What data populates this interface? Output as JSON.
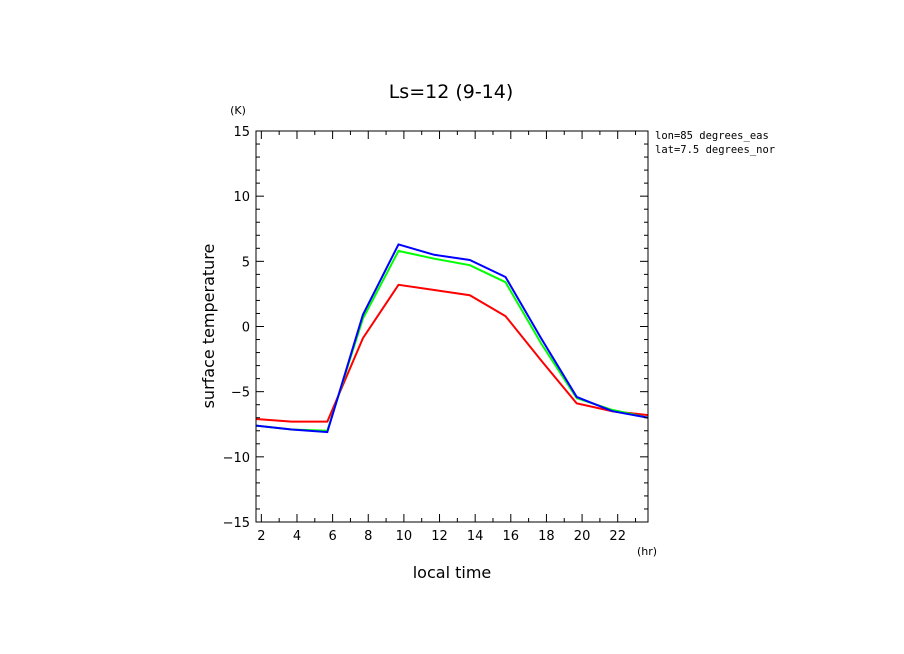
{
  "chart_data": {
    "type": "line",
    "title": "Ls=12 (9-14)",
    "xlabel": "local time",
    "ylabel": "surface temperature",
    "xunit": "(hr)",
    "yunit": "(K)",
    "xlim": [
      1.7,
      23.7
    ],
    "ylim": [
      -15,
      15
    ],
    "xticks": [
      2,
      4,
      6,
      8,
      10,
      12,
      14,
      16,
      18,
      20,
      22
    ],
    "yticks": [
      -15,
      -10,
      -5,
      0,
      5,
      10,
      15
    ],
    "xtick_labels": [
      "2",
      "4",
      "6",
      "8",
      "10",
      "12",
      "14",
      "16",
      "18",
      "20",
      "22"
    ],
    "ytick_labels": [
      "−15",
      "−10",
      "−5",
      "0",
      "5",
      "10",
      "15"
    ],
    "annotations": [
      "lon=85 degrees_eas",
      "lat=7.5 degrees_nor"
    ],
    "x": [
      1.7,
      3.7,
      5.7,
      7.7,
      9.7,
      11.7,
      13.7,
      15.7,
      17.7,
      19.7,
      21.7,
      23.7
    ],
    "series": [
      {
        "color": "#ff0000",
        "values": [
          -7.1,
          -7.3,
          -7.3,
          -0.9,
          3.2,
          2.8,
          2.4,
          0.8,
          -2.6,
          -5.9,
          -6.5,
          -6.8
        ]
      },
      {
        "color": "#00ff00",
        "values": [
          -7.6,
          -7.9,
          -8.0,
          0.6,
          5.8,
          5.2,
          4.7,
          3.4,
          -1.3,
          -5.5,
          -6.4,
          -7.0
        ]
      },
      {
        "color": "#0000ff",
        "values": [
          -7.6,
          -7.9,
          -8.1,
          0.9,
          6.3,
          5.5,
          5.1,
          3.8,
          -0.9,
          -5.4,
          -6.5,
          -7.0
        ]
      }
    ],
    "grid": false,
    "legend": "none"
  }
}
